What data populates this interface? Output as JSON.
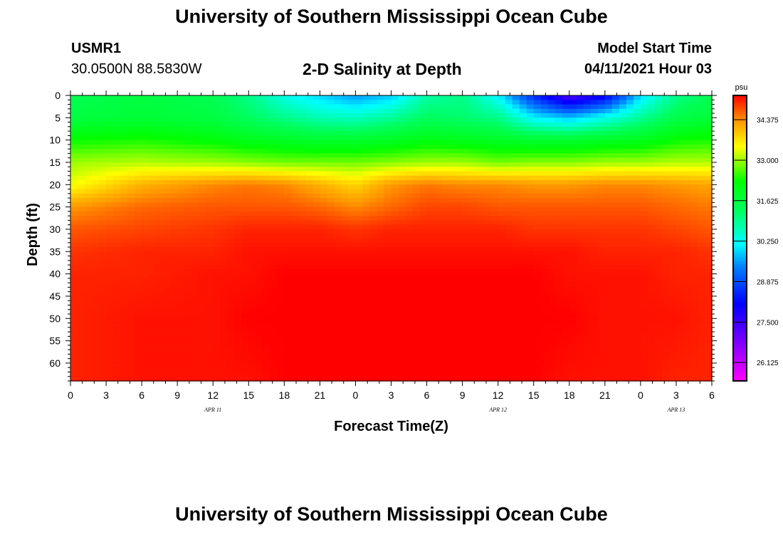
{
  "header": {
    "title": "University of Southern Mississippi Ocean Cube",
    "footer_title": "University of Southern Mississippi Ocean Cube",
    "station_id": "USMR1",
    "station_coords": "30.0500N  88.5830W",
    "plot_title": "2-D Salinity at Depth",
    "model_start_label": "Model Start Time",
    "model_start_value": "04/11/2021 Hour 03"
  },
  "chart_data": {
    "type": "heatmap",
    "title": "2-D Salinity at Depth",
    "xlabel": "Forecast Time(Z)",
    "ylabel": "Depth (ft)",
    "x_tick_labels": [
      "0",
      "3",
      "6",
      "9",
      "12",
      "15",
      "18",
      "21",
      "0",
      "3",
      "6",
      "9",
      "12",
      "15",
      "18",
      "21",
      "0",
      "3",
      "6"
    ],
    "x_day_labels": [
      {
        "label": "APR  11",
        "tick_index": 4
      },
      {
        "label": "APR  12",
        "tick_index": 12
      },
      {
        "label": "APR  13",
        "tick_index": 17
      }
    ],
    "y_tick_labels": [
      0,
      5,
      10,
      15,
      20,
      25,
      30,
      35,
      40,
      45,
      50,
      55,
      60
    ],
    "ylim": [
      0,
      64
    ],
    "colorbar": {
      "unit": "psu",
      "min": 25.5,
      "max": 35.2,
      "tick_values": [
        26.125,
        27.5,
        28.875,
        30.25,
        31.625,
        33.0,
        34.375
      ],
      "tick_labels": [
        "26.125",
        "27.500",
        "28.875",
        "30.250",
        "31.625",
        "33.000",
        "34.375"
      ]
    },
    "depths_ft": [
      0,
      5,
      10,
      15,
      20,
      25,
      30,
      35,
      40,
      50,
      64
    ],
    "forecast_hour_index": [
      0,
      6,
      12,
      15,
      18,
      21,
      24,
      27,
      30,
      33,
      36,
      39,
      42,
      45,
      48,
      51,
      54
    ],
    "salinity": [
      [
        31.4,
        31.6,
        31.4,
        31.0,
        30.3,
        29.9,
        29.5,
        29.8,
        30.8,
        31.0,
        30.1,
        28.5,
        27.2,
        28.0,
        29.9,
        31.0,
        31.4
      ],
      [
        31.6,
        31.7,
        31.6,
        31.3,
        31.0,
        30.7,
        30.6,
        30.9,
        31.3,
        31.2,
        31.0,
        30.1,
        29.8,
        30.3,
        30.9,
        31.5,
        31.7
      ],
      [
        32.3,
        32.4,
        32.2,
        32.0,
        31.9,
        31.8,
        31.8,
        31.9,
        32.1,
        32.0,
        31.9,
        31.8,
        31.8,
        31.9,
        32.0,
        32.3,
        32.4
      ],
      [
        33.0,
        33.1,
        33.0,
        32.9,
        32.8,
        32.8,
        32.8,
        32.9,
        33.0,
        33.0,
        32.8,
        32.9,
        32.9,
        33.0,
        33.0,
        33.1,
        33.1
      ],
      [
        33.4,
        34.1,
        34.4,
        34.5,
        34.4,
        34.1,
        33.8,
        34.3,
        34.5,
        34.4,
        34.4,
        34.3,
        34.3,
        34.4,
        34.4,
        34.3,
        34.2
      ],
      [
        34.3,
        34.6,
        34.7,
        34.7,
        34.7,
        34.6,
        34.4,
        34.6,
        34.8,
        34.8,
        34.7,
        34.7,
        34.7,
        34.7,
        34.7,
        34.6,
        34.5
      ],
      [
        34.7,
        34.8,
        34.9,
        35.0,
        35.0,
        35.0,
        34.9,
        35.0,
        35.0,
        35.0,
        35.0,
        34.9,
        34.9,
        34.9,
        34.9,
        34.8,
        34.7
      ],
      [
        34.9,
        35.0,
        35.0,
        35.1,
        35.1,
        35.1,
        35.1,
        35.1,
        35.1,
        35.1,
        35.1,
        35.1,
        35.1,
        35.0,
        35.0,
        35.0,
        34.9
      ],
      [
        35.0,
        35.0,
        35.1,
        35.1,
        35.2,
        35.2,
        35.2,
        35.2,
        35.2,
        35.2,
        35.2,
        35.2,
        35.1,
        35.1,
        35.1,
        35.0,
        35.0
      ],
      [
        35.0,
        35.1,
        35.1,
        35.2,
        35.2,
        35.2,
        35.2,
        35.2,
        35.2,
        35.2,
        35.2,
        35.2,
        35.2,
        35.1,
        35.1,
        35.1,
        35.0
      ],
      [
        35.0,
        35.1,
        35.1,
        35.1,
        35.2,
        35.2,
        35.2,
        35.2,
        35.2,
        35.2,
        35.2,
        35.2,
        35.1,
        35.1,
        35.1,
        35.0,
        35.0
      ]
    ]
  }
}
